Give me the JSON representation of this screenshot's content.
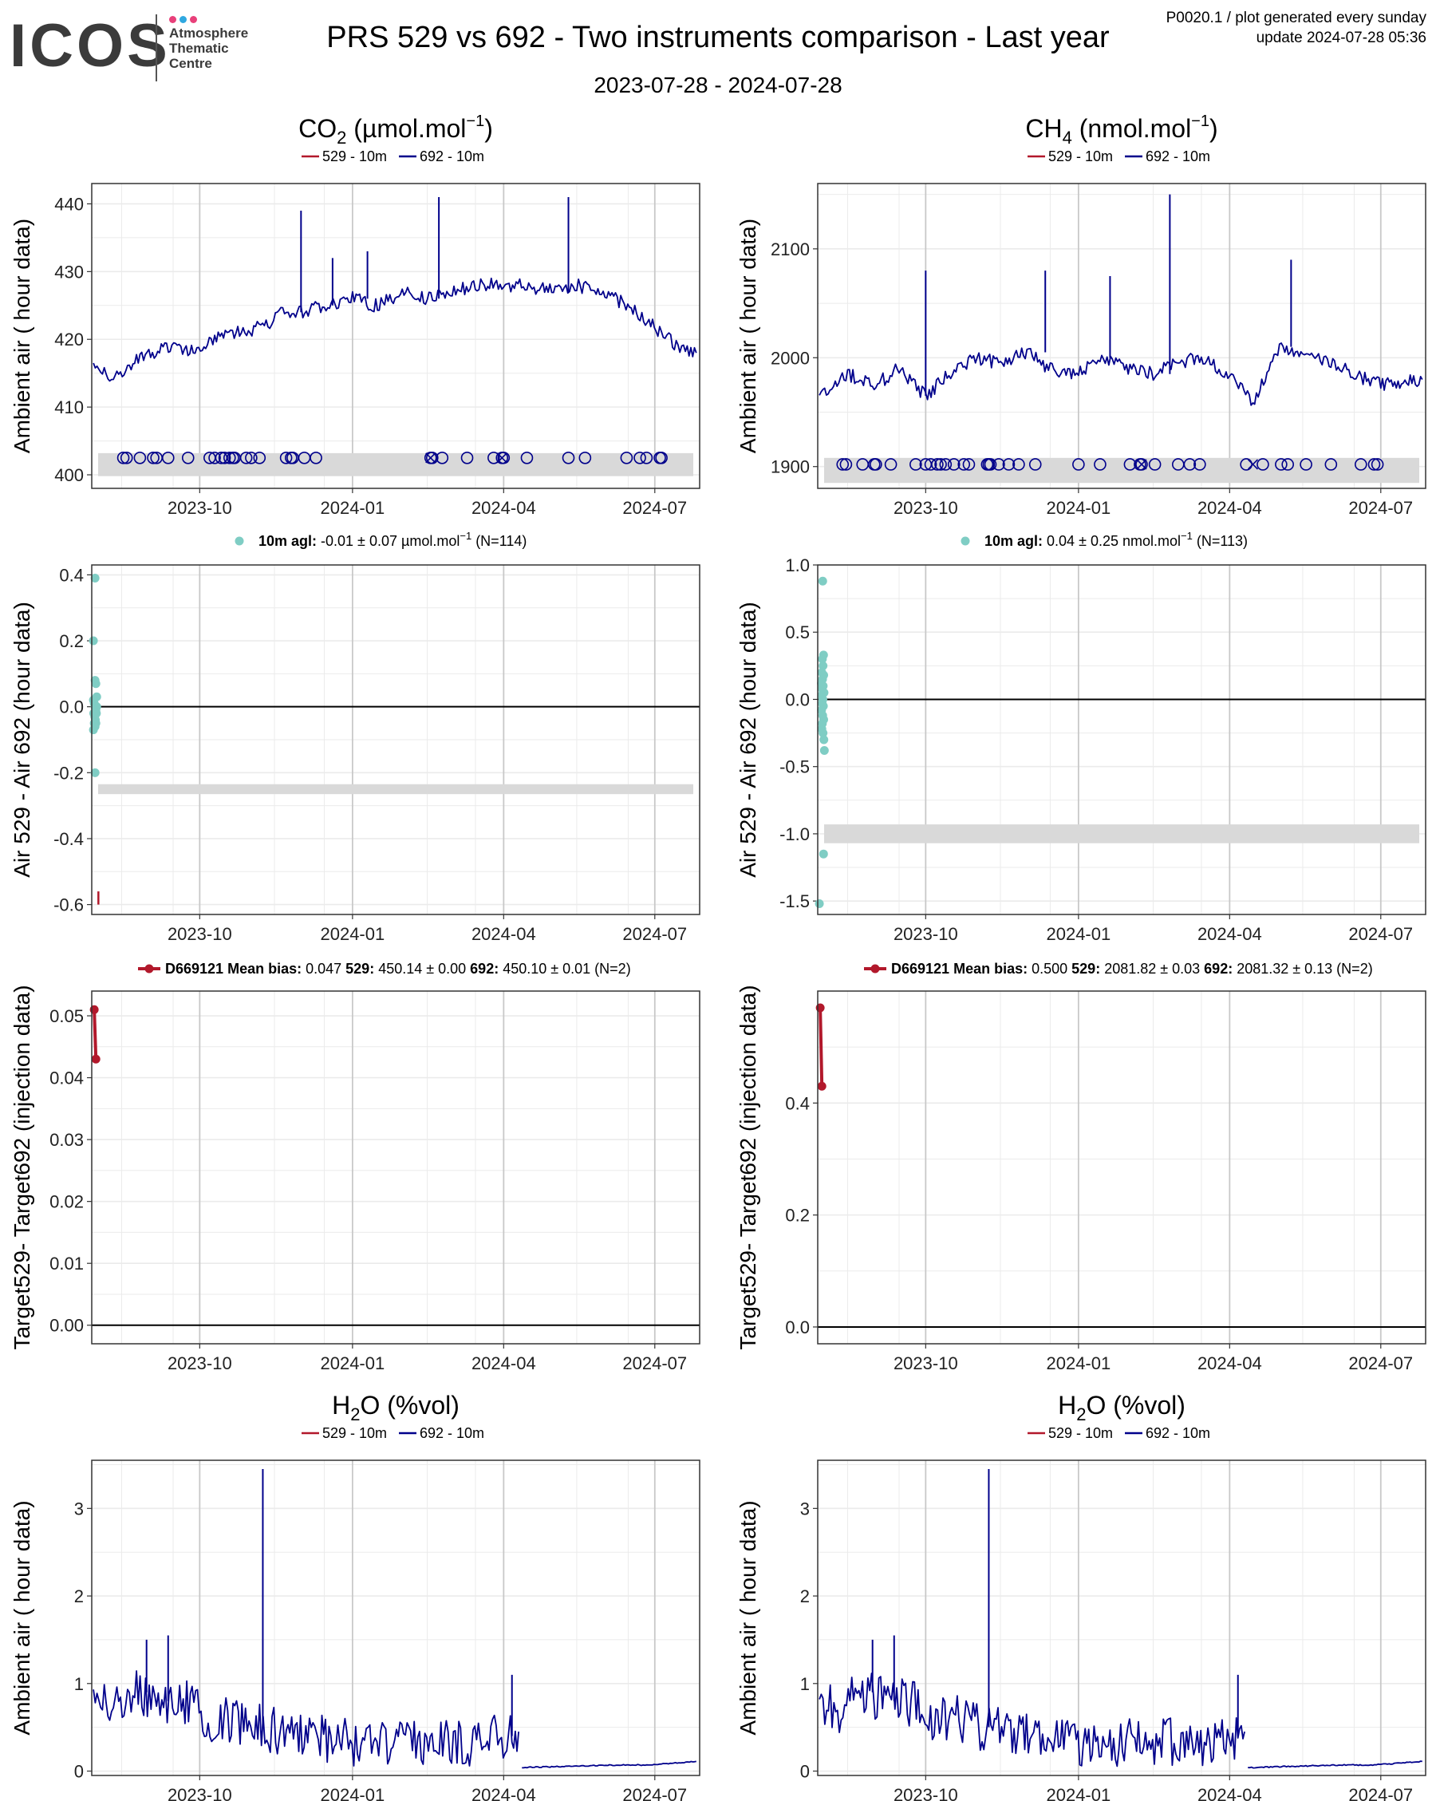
{
  "header": {
    "logo_text": "ICOS",
    "logo_sub": [
      "Atmosphere",
      "Thematic",
      "Centre"
    ],
    "logo_colors": [
      "#e8407a",
      "#2fa8e0",
      "#e8407a"
    ],
    "title": "PRS 529 vs 692 - Two instruments comparison - Last year",
    "date_range": "2023-07-28 - 2024-07-28",
    "meta_line1": "P0020.1 / plot generated every sunday",
    "meta_line2": "update  2024-07-28 05:36"
  },
  "colors": {
    "series_529": "#b2182b",
    "series_692": "#00008b",
    "diff_points": "#7fcdc4",
    "target_line": "#b2182b",
    "band": "#d9d9d9",
    "grid_major": "#c8c8c8",
    "grid_minor": "#ebebeb"
  },
  "chart_data": [
    {
      "id": "co2-ambient",
      "type": "line",
      "title": "CO2 (µmol.mol-1)",
      "title_parts": {
        "main": "CO",
        "sub": "2",
        "unit_pre": " (µmol.mol",
        "sup": "−1",
        "unit_post": ")"
      },
      "legend": [
        "529 - 10m",
        "692 - 10m"
      ],
      "ylabel": "Ambient air ( hour data)",
      "xticks": [
        "2023-10",
        "2024-01",
        "2024-04",
        "2024-07"
      ],
      "xlim": [
        "2023-07-28",
        "2024-07-28"
      ],
      "ylim": [
        398,
        443
      ],
      "yticks": [
        400,
        410,
        420,
        430,
        440
      ],
      "series": [
        {
          "name": "692 - 10m",
          "x": [
            "2023-07-29",
            "2023-08-10",
            "2023-08-25",
            "2023-09-10",
            "2023-09-25",
            "2023-10-10",
            "2023-10-25",
            "2023-11-10",
            "2023-11-20",
            "2023-12-01",
            "2023-12-15",
            "2024-01-01",
            "2024-01-15",
            "2024-02-01",
            "2024-02-15",
            "2024-03-01",
            "2024-03-15",
            "2024-04-01",
            "2024-04-15",
            "2024-05-01",
            "2024-05-15",
            "2024-06-01",
            "2024-06-20",
            "2024-07-05",
            "2024-07-15",
            "2024-07-26"
          ],
          "values": [
            416,
            414,
            417,
            419,
            418,
            420,
            421,
            422,
            424,
            424,
            425,
            426,
            425,
            427,
            426,
            427,
            428,
            428,
            428,
            427,
            428,
            427,
            424,
            421,
            419,
            418
          ],
          "spikes": [
            {
              "x": "2023-12-01",
              "y": 439
            },
            {
              "x": "2024-02-22",
              "y": 441
            },
            {
              "x": "2024-05-10",
              "y": 441
            },
            {
              "x": "2023-12-20",
              "y": 432
            },
            {
              "x": "2024-01-10",
              "y": 433
            }
          ]
        }
      ],
      "band": {
        "y0": 399.8,
        "y1": 403.2
      },
      "marker_x": [
        "2023-08-16",
        "2023-08-18",
        "2023-08-26",
        "2023-09-03",
        "2023-09-05",
        "2023-09-12",
        "2023-09-24",
        "2023-10-07",
        "2023-10-10",
        "2023-10-14",
        "2023-10-16",
        "2023-10-19",
        "2023-10-21",
        "2023-10-22",
        "2023-10-29",
        "2023-11-01",
        "2023-11-06",
        "2023-11-22",
        "2023-11-25",
        "2023-11-26",
        "2023-12-03",
        "2023-12-10",
        "2024-02-17",
        "2024-02-18",
        "2024-02-24",
        "2024-03-10",
        "2024-03-26",
        "2024-03-31",
        "2024-04-01",
        "2024-04-15",
        "2024-05-10",
        "2024-05-20",
        "2024-06-14",
        "2024-06-22",
        "2024-06-26",
        "2024-07-04",
        "2024-07-05"
      ],
      "marker_y": 402.5,
      "cross_x": [
        "2024-02-17",
        "2024-03-31"
      ]
    },
    {
      "id": "ch4-ambient",
      "type": "line",
      "title": "CH4 (nmol.mol-1)",
      "title_parts": {
        "main": "CH",
        "sub": "4",
        "unit_pre": " (nmol.mol",
        "sup": "−1",
        "unit_post": ")"
      },
      "legend": [
        "529 - 10m",
        "692 - 10m"
      ],
      "ylabel": "Ambient air ( hour data)",
      "xticks": [
        "2023-10",
        "2024-01",
        "2024-04",
        "2024-07"
      ],
      "xlim": [
        "2023-07-28",
        "2024-07-28"
      ],
      "ylim": [
        1880,
        2160
      ],
      "yticks": [
        1900,
        2000,
        2100
      ],
      "series": [
        {
          "name": "692 - 10m",
          "x": [
            "2023-07-29",
            "2023-08-15",
            "2023-09-01",
            "2023-09-15",
            "2023-10-01",
            "2023-10-15",
            "2023-11-01",
            "2023-11-15",
            "2023-12-01",
            "2023-12-15",
            "2024-01-01",
            "2024-01-15",
            "2024-02-01",
            "2024-02-15",
            "2024-03-01",
            "2024-03-15",
            "2024-04-01",
            "2024-04-15",
            "2024-05-01",
            "2024-05-15",
            "2024-06-01",
            "2024-06-15",
            "2024-07-01",
            "2024-07-26"
          ],
          "values": [
            1965,
            1985,
            1975,
            1990,
            1965,
            1985,
            2000,
            1995,
            2005,
            1990,
            1985,
            2000,
            1990,
            1985,
            1995,
            2000,
            1985,
            1960,
            2010,
            2005,
            1995,
            1985,
            1975,
            1980
          ],
          "spikes": [
            {
              "x": "2024-02-25",
              "y": 2150
            },
            {
              "x": "2023-12-12",
              "y": 2080
            },
            {
              "x": "2024-05-08",
              "y": 2090
            },
            {
              "x": "2024-01-20",
              "y": 2075
            },
            {
              "x": "2023-10-01",
              "y": 2080
            }
          ]
        }
      ],
      "band": {
        "y0": 1885,
        "y1": 1908
      },
      "marker_x": [
        "2023-08-12",
        "2023-08-14",
        "2023-08-24",
        "2023-08-31",
        "2023-09-01",
        "2023-09-10",
        "2023-09-25",
        "2023-10-01",
        "2023-10-04",
        "2023-10-08",
        "2023-10-10",
        "2023-10-13",
        "2023-10-18",
        "2023-10-24",
        "2023-10-27",
        "2023-11-07",
        "2023-11-08",
        "2023-11-09",
        "2023-11-14",
        "2023-11-20",
        "2023-11-26",
        "2023-12-06",
        "2024-01-01",
        "2024-01-14",
        "2024-02-01",
        "2024-02-07",
        "2024-02-08",
        "2024-02-16",
        "2024-03-01",
        "2024-03-08",
        "2024-03-14",
        "2024-04-11",
        "2024-04-21",
        "2024-05-02",
        "2024-05-06",
        "2024-05-17",
        "2024-06-01",
        "2024-06-19",
        "2024-06-27",
        "2024-06-29"
      ],
      "marker_y": 1902,
      "cross_x": [
        "2024-02-08",
        "2024-04-15"
      ]
    },
    {
      "id": "co2-diff",
      "type": "scatter",
      "legend_label": "10m agl:",
      "legend_stats": "-0.01 ± 0.07 µmol.mol",
      "legend_sup": "−1",
      "legend_n": "(N=114)",
      "ylabel": "Air 529 - Air 692 (hour data)",
      "xticks": [
        "2023-10",
        "2024-01",
        "2024-04",
        "2024-07"
      ],
      "xlim": [
        "2023-07-28",
        "2024-07-28"
      ],
      "ylim": [
        -0.63,
        0.43
      ],
      "yticks": [
        -0.6,
        -0.4,
        -0.2,
        0.0,
        0.2,
        0.4
      ],
      "ytick_labels": [
        "-0.6",
        "-0.4",
        "-0.2",
        "0.0",
        "0.2",
        "0.4"
      ],
      "points": [
        [
          2.0,
          0.39
        ],
        [
          1.0,
          0.2
        ],
        [
          2.0,
          0.08
        ],
        [
          2.5,
          0.07
        ],
        [
          3.0,
          0.03
        ],
        [
          1.0,
          0.02
        ],
        [
          1.5,
          0.01
        ],
        [
          2.0,
          0.0
        ],
        [
          2.5,
          -0.01
        ],
        [
          1.2,
          -0.02
        ],
        [
          1.8,
          -0.03
        ],
        [
          2.2,
          -0.04
        ],
        [
          2.8,
          -0.02
        ],
        [
          1.5,
          -0.05
        ],
        [
          2.0,
          -0.06
        ],
        [
          1.0,
          -0.07
        ],
        [
          2.5,
          -0.05
        ],
        [
          3.0,
          0.0
        ],
        [
          2.0,
          -0.2
        ]
      ],
      "band": {
        "y0": -0.265,
        "y1": -0.235
      },
      "segment": {
        "x": 4.0,
        "y0": -0.6,
        "y1": -0.56
      }
    },
    {
      "id": "ch4-diff",
      "type": "scatter",
      "legend_label": "10m agl:",
      "legend_stats": "0.04 ± 0.25 nmol.mol",
      "legend_sup": "−1",
      "legend_n": "(N=113)",
      "ylabel": "Air 529 - Air 692 (hour data)",
      "xticks": [
        "2023-10",
        "2024-01",
        "2024-04",
        "2024-07"
      ],
      "xlim": [
        "2023-07-28",
        "2024-07-28"
      ],
      "ylim": [
        -1.6,
        1.0
      ],
      "yticks": [
        -1.5,
        -1.0,
        -0.5,
        0.0,
        0.5,
        1.0
      ],
      "ytick_labels": [
        "-1.5",
        "-1.0",
        "-0.5",
        "0.0",
        "0.5",
        "1.0"
      ],
      "points": [
        [
          3.0,
          0.88
        ],
        [
          3.5,
          0.33
        ],
        [
          2.8,
          0.3
        ],
        [
          3.2,
          0.25
        ],
        [
          2.5,
          0.2
        ],
        [
          3.6,
          0.18
        ],
        [
          2.9,
          0.15
        ],
        [
          2.2,
          0.12
        ],
        [
          3.3,
          0.1
        ],
        [
          2.6,
          0.08
        ],
        [
          3.8,
          0.05
        ],
        [
          2.4,
          0.03
        ],
        [
          3.1,
          0.0
        ],
        [
          2.7,
          -0.03
        ],
        [
          3.4,
          -0.05
        ],
        [
          2.3,
          -0.08
        ],
        [
          3.0,
          -0.12
        ],
        [
          3.6,
          -0.15
        ],
        [
          2.8,
          -0.18
        ],
        [
          2.5,
          -0.22
        ],
        [
          3.2,
          -0.25
        ],
        [
          3.7,
          -0.3
        ],
        [
          4.0,
          -0.38
        ],
        [
          3.5,
          -1.15
        ],
        [
          1.0,
          -1.52
        ]
      ],
      "band": {
        "y0": -1.07,
        "y1": -0.93
      },
      "segment": null
    },
    {
      "id": "co2-target",
      "type": "line",
      "legend_id": "D669121",
      "legend_text": "Mean bias:",
      "legend_bias": "0.047",
      "legend_529": "529:",
      "legend_529_val": "450.14 ± 0.00",
      "legend_692": "692:",
      "legend_692_val": "450.10 ± 0.01 (N=2)",
      "ylabel": "Target529- Target692 (injection data)",
      "xticks": [
        "2023-10",
        "2024-01",
        "2024-04",
        "2024-07"
      ],
      "xlim": [
        "2023-07-28",
        "2024-07-28"
      ],
      "ylim": [
        -0.003,
        0.054
      ],
      "yticks": [
        0.0,
        0.01,
        0.02,
        0.03,
        0.04,
        0.05
      ],
      "ytick_labels": [
        "0.00",
        "0.01",
        "0.02",
        "0.03",
        "0.04",
        "0.05"
      ],
      "points": [
        [
          1.5,
          0.051
        ],
        [
          2.5,
          0.043
        ]
      ]
    },
    {
      "id": "ch4-target",
      "type": "line",
      "legend_id": "D669121",
      "legend_text": "Mean bias:",
      "legend_bias": "0.500",
      "legend_529": "529:",
      "legend_529_val": "2081.82 ± 0.03",
      "legend_692": "692:",
      "legend_692_val": "2081.32 ± 0.13 (N=2)",
      "ylabel": "Target529- Target692 (injection data)",
      "xticks": [
        "2023-10",
        "2024-01",
        "2024-04",
        "2024-07"
      ],
      "xlim": [
        "2023-07-28",
        "2024-07-28"
      ],
      "ylim": [
        -0.03,
        0.6
      ],
      "yticks": [
        0.0,
        0.2,
        0.4
      ],
      "ytick_labels": [
        "0.0",
        "0.2",
        "0.4"
      ],
      "points": [
        [
          1.5,
          0.57
        ],
        [
          2.5,
          0.43
        ]
      ]
    },
    {
      "id": "h2o-left",
      "type": "line",
      "title": "H2O (%vol)",
      "title_parts": {
        "main": "H",
        "sub": "2",
        "unit_pre": "O (%vol)",
        "sup": "",
        "unit_post": ""
      },
      "legend": [
        "529 - 10m",
        "692 - 10m"
      ],
      "ylabel": "Ambient air ( hour data)",
      "xticks": [
        "2023-10",
        "2024-01",
        "2024-04",
        "2024-07"
      ],
      "xlim": [
        "2023-07-28",
        "2024-07-28"
      ],
      "ylim": [
        -0.05,
        3.55
      ],
      "yticks": [
        0,
        1,
        2,
        3
      ],
      "series": [
        {
          "name": "692 - 10m",
          "x": [
            "2023-07-29",
            "2023-08-10",
            "2023-08-25",
            "2023-09-05",
            "2023-09-20",
            "2023-10-05",
            "2023-10-20",
            "2023-11-05",
            "2023-11-20",
            "2023-12-05",
            "2023-12-20",
            "2024-01-05",
            "2024-01-20",
            "2024-02-05",
            "2024-02-20",
            "2024-03-05",
            "2024-03-20",
            "2024-04-05",
            "2024-04-10"
          ],
          "values": [
            0.8,
            0.7,
            0.9,
            0.8,
            0.8,
            0.6,
            0.6,
            0.5,
            0.45,
            0.4,
            0.35,
            0.3,
            0.3,
            0.35,
            0.35,
            0.3,
            0.35,
            0.4,
            0.45
          ],
          "spikes": [
            {
              "x": "2023-11-08",
              "y": 3.45
            },
            {
              "x": "2024-04-06",
              "y": 1.1
            },
            {
              "x": "2023-09-12",
              "y": 1.55
            },
            {
              "x": "2023-08-30",
              "y": 1.5
            }
          ]
        },
        {
          "name": "692 - 10m (low)",
          "x": [
            "2024-04-12",
            "2024-05-01",
            "2024-05-20",
            "2024-06-10",
            "2024-06-25",
            "2024-07-05",
            "2024-07-26"
          ],
          "values": [
            0.04,
            0.05,
            0.06,
            0.07,
            0.07,
            0.08,
            0.11
          ]
        }
      ]
    },
    {
      "id": "h2o-right",
      "type": "line",
      "title": "H2O (%vol)",
      "title_parts": {
        "main": "H",
        "sub": "2",
        "unit_pre": "O (%vol)",
        "sup": "",
        "unit_post": ""
      },
      "legend": [
        "529 - 10m",
        "692 - 10m"
      ],
      "ylabel": "Ambient air ( hour data)",
      "xticks": [
        "2023-10",
        "2024-01",
        "2024-04",
        "2024-07"
      ],
      "xlim": [
        "2023-07-28",
        "2024-07-28"
      ],
      "ylim": [
        -0.05,
        3.55
      ],
      "yticks": [
        0,
        1,
        2,
        3
      ],
      "series": [
        {
          "name": "692 - 10m",
          "x": [
            "2023-07-29",
            "2023-08-10",
            "2023-08-25",
            "2023-09-05",
            "2023-09-20",
            "2023-10-05",
            "2023-10-20",
            "2023-11-05",
            "2023-11-20",
            "2023-12-05",
            "2023-12-20",
            "2024-01-05",
            "2024-01-20",
            "2024-02-05",
            "2024-02-20",
            "2024-03-05",
            "2024-03-20",
            "2024-04-05",
            "2024-04-10"
          ],
          "values": [
            0.8,
            0.7,
            0.9,
            0.8,
            0.8,
            0.6,
            0.6,
            0.5,
            0.45,
            0.4,
            0.35,
            0.3,
            0.3,
            0.35,
            0.35,
            0.3,
            0.35,
            0.4,
            0.45
          ],
          "spikes": [
            {
              "x": "2023-11-08",
              "y": 3.45
            },
            {
              "x": "2024-04-06",
              "y": 1.1
            },
            {
              "x": "2023-09-12",
              "y": 1.55
            },
            {
              "x": "2023-08-30",
              "y": 1.5
            }
          ]
        },
        {
          "name": "692 - 10m (low)",
          "x": [
            "2024-04-12",
            "2024-05-01",
            "2024-05-20",
            "2024-06-10",
            "2024-06-25",
            "2024-07-05",
            "2024-07-26"
          ],
          "values": [
            0.04,
            0.05,
            0.06,
            0.07,
            0.07,
            0.08,
            0.11
          ]
        }
      ]
    }
  ]
}
